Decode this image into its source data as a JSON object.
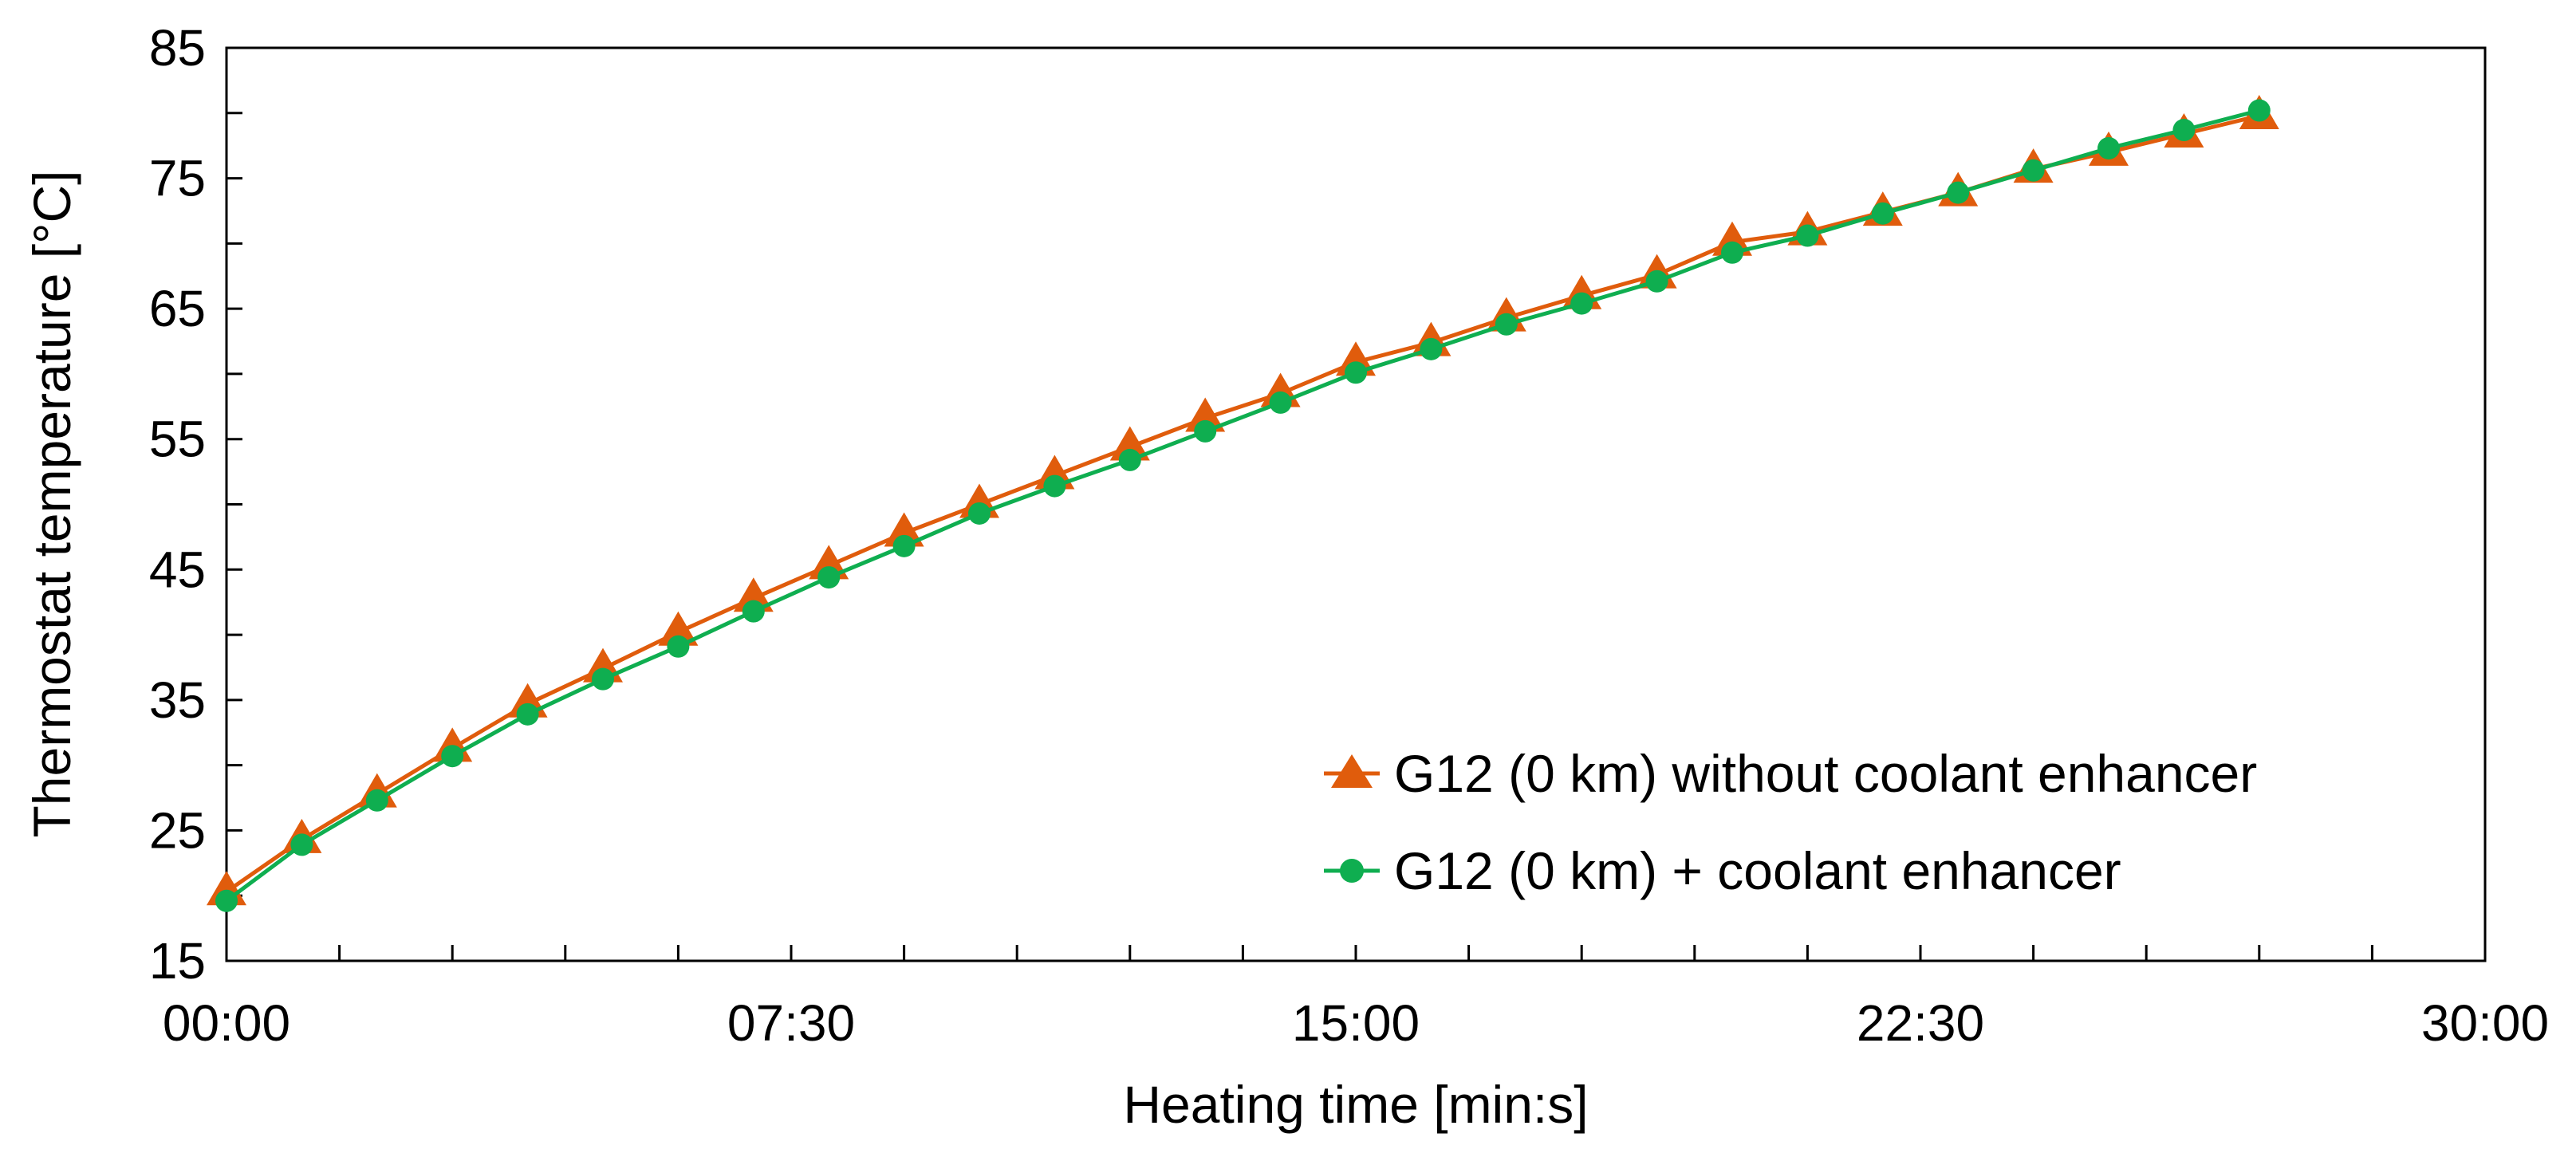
{
  "chart_data": {
    "type": "line",
    "title": "",
    "xlabel": "Heating time [min:s]",
    "ylabel": "Thermostat temperature [°C]",
    "xlim": [
      0,
      1800
    ],
    "ylim": [
      15,
      85
    ],
    "x_ticks": [
      {
        "value": 0,
        "label": "00:00"
      },
      {
        "value": 450,
        "label": "07:30"
      },
      {
        "value": 900,
        "label": "15:00"
      },
      {
        "value": 1350,
        "label": "22:30"
      },
      {
        "value": 1800,
        "label": "30:00"
      }
    ],
    "x_minor_step": 90,
    "y_ticks": [
      {
        "value": 15,
        "label": "15"
      },
      {
        "value": 25,
        "label": "25"
      },
      {
        "value": 35,
        "label": "35"
      },
      {
        "value": 45,
        "label": "45"
      },
      {
        "value": 55,
        "label": "55"
      },
      {
        "value": 65,
        "label": "65"
      },
      {
        "value": 75,
        "label": "75"
      },
      {
        "value": 85,
        "label": "85"
      }
    ],
    "y_minor_step": 5,
    "grid": false,
    "legend_position": "bottom-right",
    "x": [
      0,
      60,
      120,
      180,
      240,
      300,
      360,
      420,
      480,
      540,
      600,
      660,
      720,
      780,
      840,
      900,
      960,
      1020,
      1080,
      1140,
      1200,
      1260,
      1320,
      1380,
      1440,
      1500,
      1560,
      1620
    ],
    "series": [
      {
        "name": "G12 (0 km) without coolant enhancer",
        "color": "#e05c0c",
        "marker": "triangle",
        "values": [
          20.3,
          24.3,
          27.8,
          31.3,
          34.7,
          37.4,
          40.2,
          42.8,
          45.3,
          47.8,
          50.0,
          52.2,
          54.4,
          56.6,
          58.5,
          60.9,
          62.4,
          64.3,
          66.0,
          67.6,
          70.1,
          70.9,
          72.4,
          73.9,
          75.7,
          77.0,
          78.4,
          79.8
        ]
      },
      {
        "name": "G12 (0 km) + coolant enhancer",
        "color": "#0fae50",
        "marker": "circle",
        "values": [
          19.6,
          23.9,
          27.3,
          30.7,
          33.9,
          36.6,
          39.1,
          41.8,
          44.4,
          46.8,
          49.3,
          51.4,
          53.4,
          55.6,
          57.8,
          60.1,
          61.9,
          63.8,
          65.4,
          67.1,
          69.3,
          70.6,
          72.3,
          73.9,
          75.6,
          77.3,
          78.7,
          80.2
        ]
      }
    ]
  }
}
